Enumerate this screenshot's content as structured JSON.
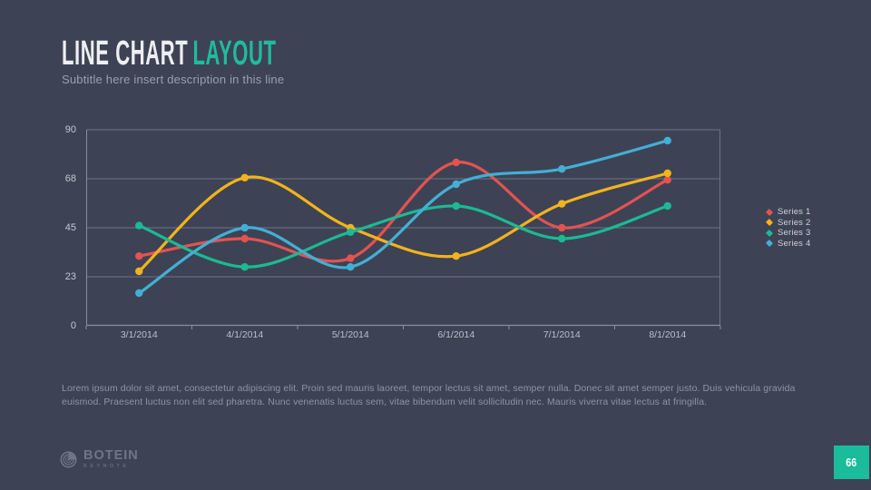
{
  "slide": {
    "title_primary": "LINE CHART",
    "title_accent": "LAYOUT",
    "subtitle": "Subtitle here insert description in this line",
    "body_text": "Lorem ipsum dolor sit amet, consectetur adipiscing elit. Proin sed mauris laoreet, tempor lectus sit amet, semper nulla. Donec sit amet semper justo. Duis vehicula gravida euismod. Praesent luctus non elit sed pharetra. Nunc venenatis luctus sem, vitae bibendum velit sollicitudin nec. Mauris viverra vitae lectus at fringilla.",
    "page_number": "66",
    "brand": {
      "name": "BOTEIN",
      "tagline": "KEYNOTE"
    },
    "icons": {
      "logo": "botein-swirl-logo-icon"
    }
  },
  "colors": {
    "background": "#3d4354",
    "accent": "#1fbc9e",
    "grid": "#6f7687",
    "axis": "#8a90a0",
    "page_box": "#1bbc9b"
  },
  "chart_data": {
    "type": "line",
    "title": "",
    "xlabel": "",
    "ylabel": "",
    "categories": [
      "3/1/2014",
      "4/1/2014",
      "5/1/2014",
      "6/1/2014",
      "7/1/2014",
      "8/1/2014"
    ],
    "series": [
      {
        "name": "Series 1",
        "color": "#e25351",
        "values": [
          32,
          40,
          31,
          75,
          45,
          67
        ]
      },
      {
        "name": "Series 2",
        "color": "#f3b31d",
        "values": [
          25,
          68,
          45,
          32,
          56,
          70
        ]
      },
      {
        "name": "Series 3",
        "color": "#1cba94",
        "values": [
          46,
          27,
          43,
          55,
          40,
          55
        ]
      },
      {
        "name": "Series 4",
        "color": "#44afd5",
        "values": [
          15,
          45,
          27,
          65,
          72,
          85
        ]
      }
    ],
    "y_tick_labels": [
      "0",
      "23",
      "45",
      "68",
      "90"
    ],
    "ylim": [
      0,
      90
    ],
    "grid": true,
    "smooth": true,
    "markers": true,
    "legend_position": "right"
  }
}
